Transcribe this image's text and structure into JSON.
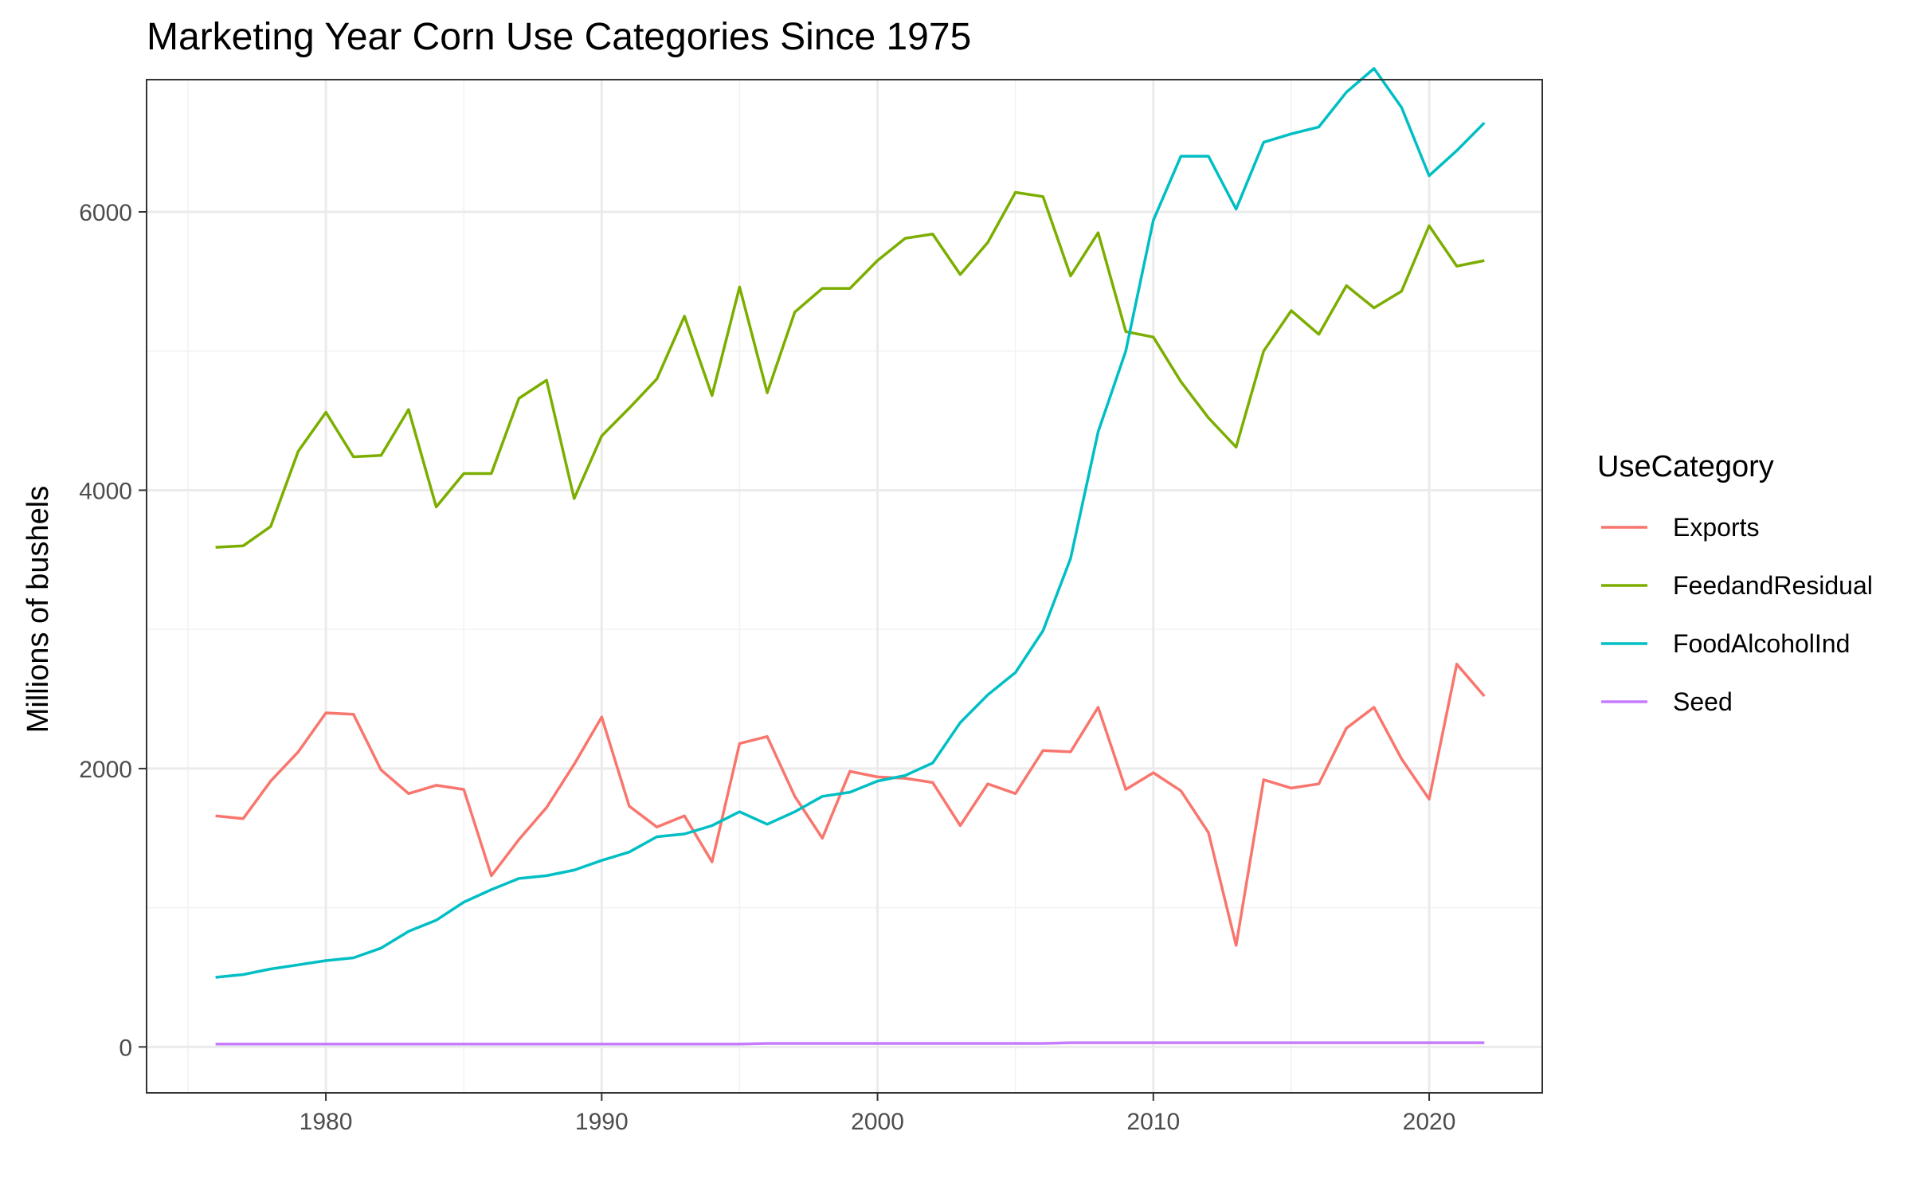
{
  "chart_data": {
    "type": "line",
    "title": "Marketing Year Corn Use Categories Since 1975",
    "xlabel": "",
    "ylabel": "Millions of bushels",
    "xlim": [
      1973.5,
      2024.1
    ],
    "ylim": [
      -330,
      6950
    ],
    "xticks": [
      "1980",
      "1990",
      "2000",
      "2010",
      "2020"
    ],
    "yticks": [
      "0",
      "2000",
      "4000",
      "6000"
    ],
    "grid": true,
    "legend": {
      "title": "UseCategory",
      "position": "right"
    },
    "x": [
      1976,
      1977,
      1978,
      1979,
      1980,
      1981,
      1982,
      1983,
      1984,
      1985,
      1986,
      1987,
      1988,
      1989,
      1990,
      1991,
      1992,
      1993,
      1994,
      1995,
      1996,
      1997,
      1998,
      1999,
      2000,
      2001,
      2002,
      2003,
      2004,
      2005,
      2006,
      2007,
      2008,
      2009,
      2010,
      2011,
      2012,
      2013,
      2014,
      2015,
      2016,
      2017,
      2018,
      2019,
      2020,
      2021,
      2022
    ],
    "series": [
      {
        "name": "Exports",
        "color": "#f8766d",
        "values": [
          1660,
          1640,
          1910,
          2120,
          2400,
          2390,
          1990,
          1820,
          1880,
          1850,
          1230,
          1490,
          1720,
          2030,
          2370,
          1730,
          1580,
          1660,
          1330,
          2180,
          2230,
          1800,
          1500,
          1980,
          1940,
          1930,
          1900,
          1590,
          1890,
          1820,
          2130,
          2120,
          2440,
          1850,
          1970,
          1840,
          1540,
          730,
          1920,
          1860,
          1890,
          2290,
          2440,
          2070,
          1780,
          2750,
          2520
        ]
      },
      {
        "name": "FeedandResidual",
        "color": "#7cae00",
        "values": [
          3590,
          3600,
          3740,
          4280,
          4560,
          4240,
          4250,
          4580,
          3880,
          4120,
          4120,
          4660,
          4790,
          3940,
          4390,
          4590,
          4800,
          5250,
          4680,
          5460,
          4700,
          5280,
          5450,
          5450,
          5650,
          5810,
          5840,
          5550,
          5780,
          6140,
          6110,
          5540,
          5850,
          5140,
          5100,
          4780,
          4520,
          4310,
          5000,
          5290,
          5120,
          5470,
          5310,
          5430,
          5900,
          5610,
          5650
        ]
      },
      {
        "name": "FoodAlcoholInd",
        "color": "#00bfc4",
        "values": [
          500,
          520,
          560,
          590,
          620,
          640,
          710,
          830,
          910,
          1040,
          1130,
          1210,
          1230,
          1270,
          1340,
          1400,
          1510,
          1530,
          1590,
          1690,
          1600,
          1690,
          1800,
          1830,
          1910,
          1950,
          2040,
          2330,
          2530,
          2690,
          2990,
          3510,
          4420,
          5000,
          5940,
          6400,
          6400,
          6020,
          6500,
          6560,
          6610,
          6860,
          7030,
          6750,
          6260,
          6440,
          6640
        ]
      },
      {
        "name": "Seed",
        "color": "#c77cff",
        "values": [
          20,
          20,
          20,
          20,
          20,
          20,
          20,
          20,
          20,
          20,
          20,
          20,
          20,
          20,
          20,
          20,
          20,
          20,
          20,
          20,
          25,
          25,
          25,
          25,
          25,
          25,
          25,
          25,
          25,
          25,
          25,
          30,
          30,
          30,
          30,
          30,
          30,
          30,
          30,
          30,
          30,
          30,
          30,
          30,
          30,
          30,
          30
        ]
      }
    ]
  }
}
